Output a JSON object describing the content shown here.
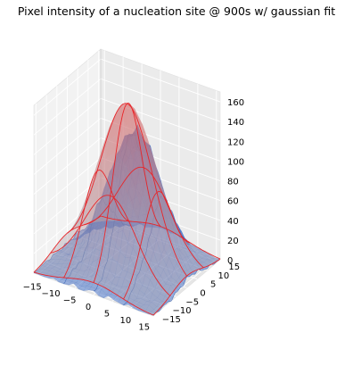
{
  "chart_data": {
    "type": "surface3d",
    "title": "Pixel intensity of a nucleation site @ 900s w/ gaussian fit",
    "xlabel": "",
    "ylabel": "",
    "zlabel": "",
    "xlim": [
      -16,
      16
    ],
    "ylim": [
      -16,
      16
    ],
    "zlim": [
      0,
      170
    ],
    "x_ticks": [
      "−15",
      "−10",
      "−5",
      "0",
      "5",
      "10",
      "15"
    ],
    "y_ticks": [
      "−15",
      "−10",
      "−5",
      "0",
      "5",
      "10",
      "15"
    ],
    "z_ticks": [
      "0",
      "20",
      "40",
      "60",
      "80",
      "100",
      "120",
      "140",
      "160"
    ],
    "grid": true,
    "series": [
      {
        "kind": "measured-surface",
        "color": "#4a78c2",
        "peak_intensity": 130,
        "grid_range": [
          -16,
          16
        ]
      },
      {
        "kind": "gaussian-fit-surface",
        "color": "#e8262a",
        "amplitude": 165,
        "center": [
          0,
          0
        ],
        "sigma": 7,
        "offset": 0,
        "grid_range": [
          -16,
          16
        ]
      }
    ]
  }
}
